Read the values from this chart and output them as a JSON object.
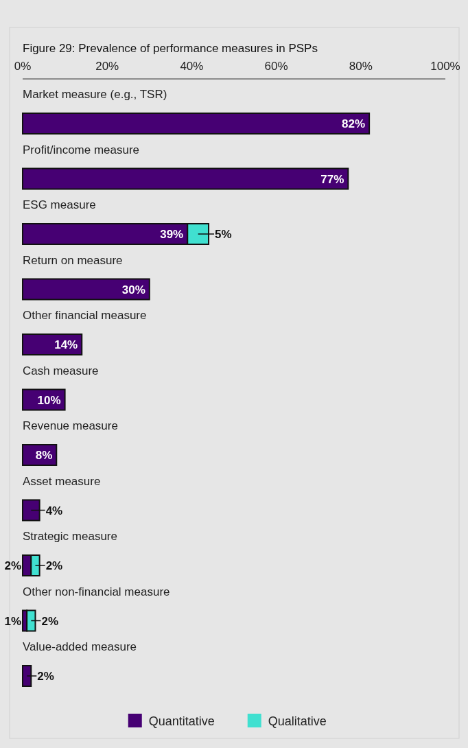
{
  "chart_data": {
    "type": "bar",
    "orientation": "horizontal",
    "stacked": true,
    "title": "Figure 29: Prevalence of performance measures in PSPs",
    "categories": [
      "Market measure (e.g., TSR)",
      "Profit/income measure",
      "ESG measure",
      "Return on measure",
      "Other financial measure",
      "Cash measure",
      "Revenue measure",
      "Asset measure",
      "Strategic measure",
      "Other non-financial measure",
      "Value-added measure"
    ],
    "series": [
      {
        "name": "Quantitative",
        "color": "#460073",
        "values": [
          82,
          77,
          39,
          30,
          14,
          10,
          8,
          4,
          2,
          1,
          2
        ],
        "value_labels": [
          "82%",
          "77%",
          "39%",
          "30%",
          "14%",
          "10%",
          "8%",
          "4%",
          "2%",
          "1%",
          "2%"
        ]
      },
      {
        "name": "Qualitative",
        "color": "#40e0d0",
        "values": [
          null,
          null,
          5,
          null,
          null,
          null,
          null,
          null,
          2,
          2,
          null
        ],
        "value_labels": [
          null,
          null,
          "5%",
          null,
          null,
          null,
          null,
          null,
          "2%",
          "2%",
          null
        ]
      }
    ],
    "xlim": [
      0,
      100
    ],
    "xticks": [
      {
        "value": 0,
        "label": "0%"
      },
      {
        "value": 20,
        "label": "20%"
      },
      {
        "value": 40,
        "label": "40%"
      },
      {
        "value": 60,
        "label": "60%"
      },
      {
        "value": 80,
        "label": "80%"
      },
      {
        "value": 100,
        "label": "100%"
      }
    ],
    "legend": "bottom"
  }
}
